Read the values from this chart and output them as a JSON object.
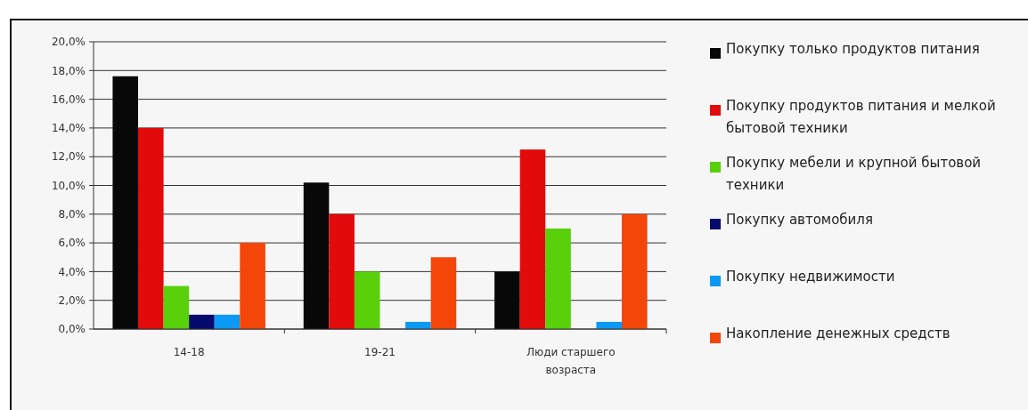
{
  "chart_data": {
    "type": "bar",
    "categories": [
      "14-18",
      "19-21",
      "Люди старшего возраста"
    ],
    "series": [
      {
        "name": "Покупку только продуктов питания",
        "color": "#080808",
        "values": [
          17.6,
          10.2,
          4.0
        ]
      },
      {
        "name": "Покупку продуктов питания и мелкой бытовой техники",
        "color": "#e20a0a",
        "values": [
          14.0,
          8.0,
          12.5
        ]
      },
      {
        "name": "Покупку мебели и крупной бытовой техники",
        "color": "#58d00a",
        "values": [
          3.0,
          4.0,
          7.0
        ]
      },
      {
        "name": "Покупку автомобиля",
        "color": "#060a6e",
        "values": [
          1.0,
          0,
          0
        ]
      },
      {
        "name": "Покупку недвижимости",
        "color": "#0a99f5",
        "values": [
          1.0,
          0.5,
          0.5
        ]
      },
      {
        "name": "Накопление денежных средств",
        "color": "#f5460a",
        "values": [
          6.0,
          5.0,
          8.0
        ]
      }
    ],
    "ylim": [
      0,
      20
    ],
    "yticks": [
      {
        "value": 0,
        "label": "0,0%"
      },
      {
        "value": 2,
        "label": "2,0%"
      },
      {
        "value": 4,
        "label": "4,0%"
      },
      {
        "value": 6,
        "label": "6,0%"
      },
      {
        "value": 8,
        "label": "8,0%"
      },
      {
        "value": 10,
        "label": "10,0%"
      },
      {
        "value": 12,
        "label": "12,0%"
      },
      {
        "value": 14,
        "label": "14,0%"
      },
      {
        "value": 16,
        "label": "16,0%"
      },
      {
        "value": 18,
        "label": "18,0%"
      },
      {
        "value": 20,
        "label": "20,0%"
      }
    ],
    "grid": "y",
    "legend": "right"
  }
}
